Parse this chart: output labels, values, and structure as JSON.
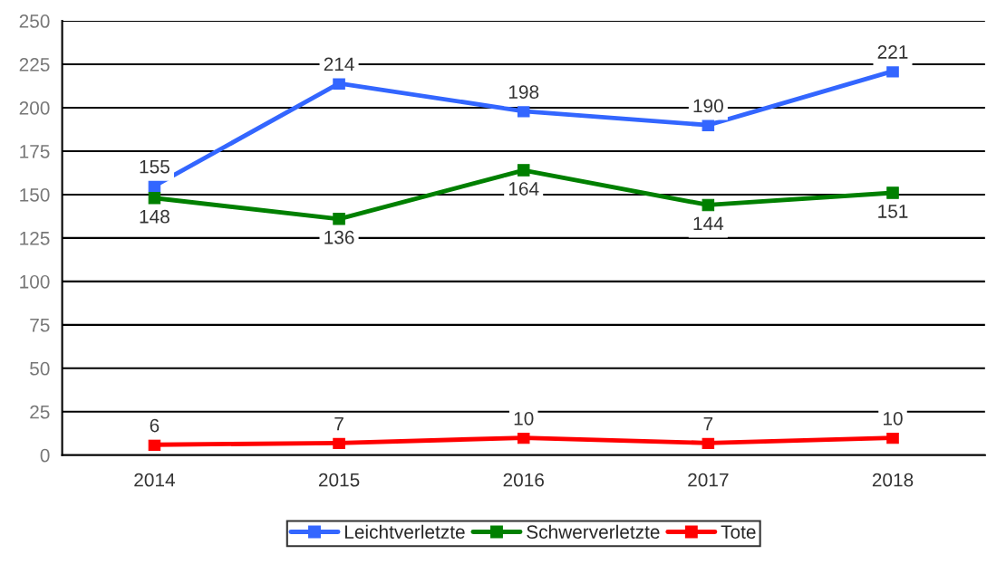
{
  "chart_data": {
    "type": "line",
    "categories": [
      "2014",
      "2015",
      "2016",
      "2017",
      "2018"
    ],
    "series": [
      {
        "name": "Leichtverletzte",
        "color": "#3366ff",
        "values": [
          155,
          214,
          198,
          190,
          221
        ]
      },
      {
        "name": "Schwerverletzte",
        "color": "#008000",
        "values": [
          148,
          136,
          164,
          144,
          151
        ]
      },
      {
        "name": "Tote",
        "color": "#ff0000",
        "values": [
          6,
          7,
          10,
          7,
          10
        ]
      }
    ],
    "ylim": [
      0,
      250
    ],
    "yticks": [
      0,
      25,
      50,
      75,
      100,
      125,
      150,
      175,
      200,
      225,
      250
    ],
    "grid": "y",
    "legend": "bottom",
    "marker": "square",
    "line_style": "solid",
    "data_labels": true
  }
}
